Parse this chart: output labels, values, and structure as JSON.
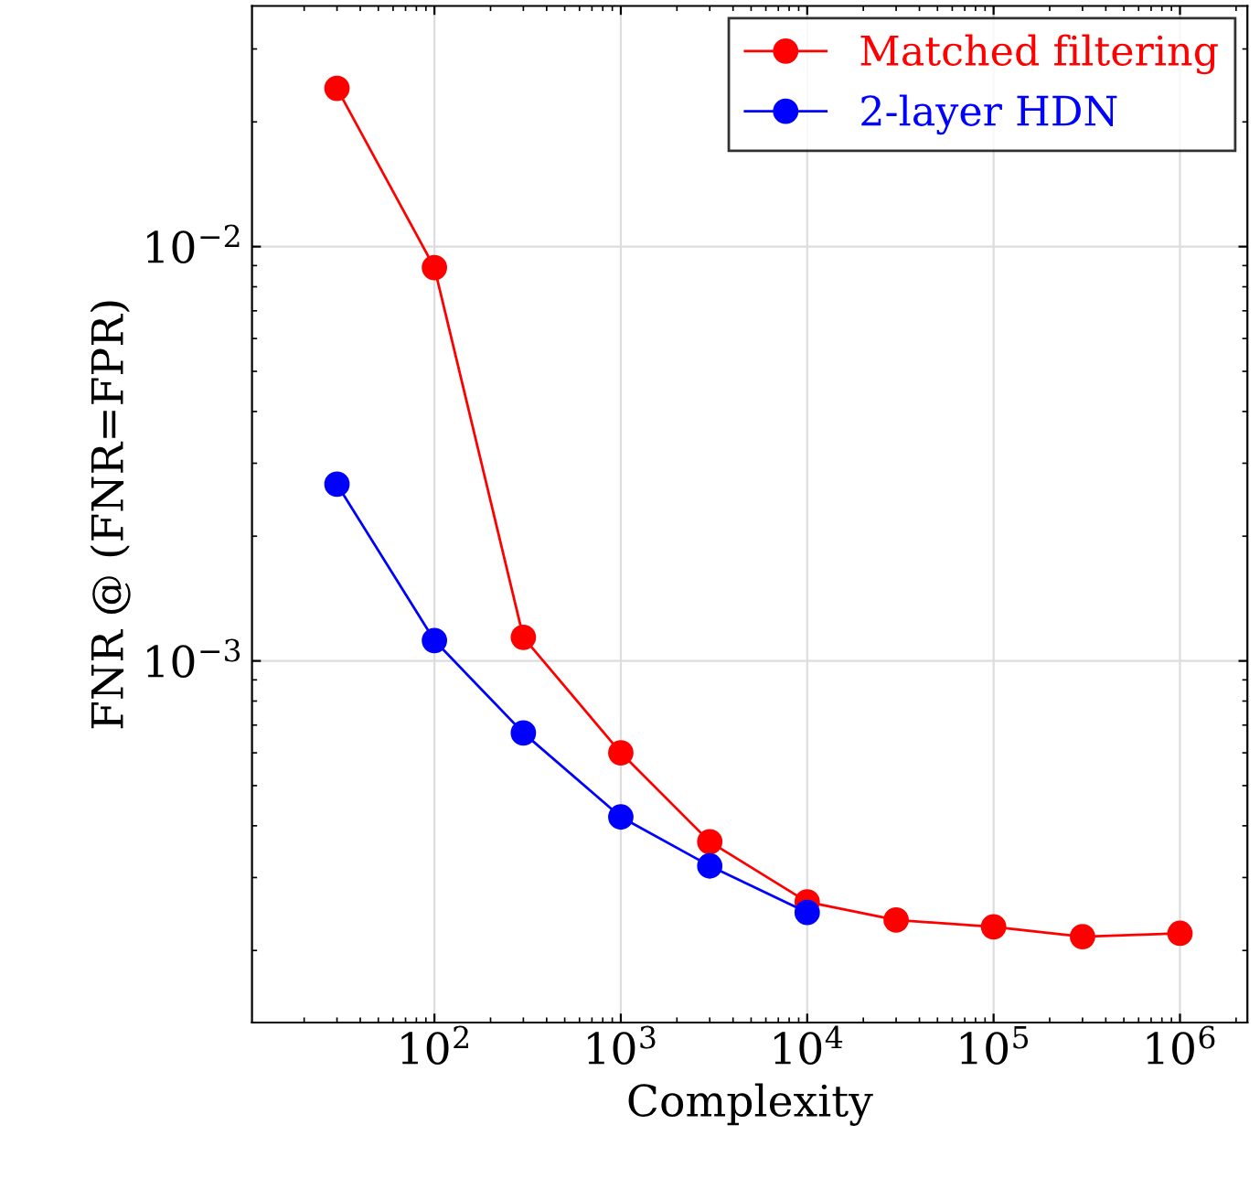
{
  "chart_data": {
    "type": "line",
    "xlabel": "Complexity",
    "ylabel": "FNR @ (FNR=FPR)",
    "log": "xy",
    "grid": true,
    "legend": "top right",
    "marker": "circle",
    "line_style": "solid",
    "xlim": [
      10.5,
      2300000
    ],
    "ylim": [
      0.000134,
      0.0381
    ],
    "xticks": [
      {
        "value": 100,
        "label": "10$^{2}$"
      },
      {
        "value": 1000,
        "label": "10$^{3}$"
      },
      {
        "value": 10000,
        "label": "10$^{4}$"
      },
      {
        "value": 100000,
        "label": "10$^{5}$"
      },
      {
        "value": 1000000,
        "label": "10$^{6}$"
      }
    ],
    "yticks": [
      {
        "value": 0.001,
        "label": "10$^{−3}$"
      },
      {
        "value": 0.01,
        "label": "10$^{−2}$"
      }
    ],
    "series": [
      {
        "name": "Matched filtering",
        "color": "#ff0000",
        "x": [
          30,
          100,
          300,
          1000,
          3000,
          10000,
          30000,
          100000,
          300000,
          1000000
        ],
        "values": [
          0.0241,
          0.0089,
          0.00114,
          0.0006,
          0.000366,
          0.000262,
          0.000237,
          0.000228,
          0.000216,
          0.00022
        ]
      },
      {
        "name": "2-layer HDN",
        "color": "#0000ff",
        "x": [
          30,
          100,
          300,
          1000,
          3000,
          10000
        ],
        "values": [
          0.00267,
          0.00112,
          0.00067,
          0.00042,
          0.00032,
          0.000247
        ]
      }
    ]
  }
}
